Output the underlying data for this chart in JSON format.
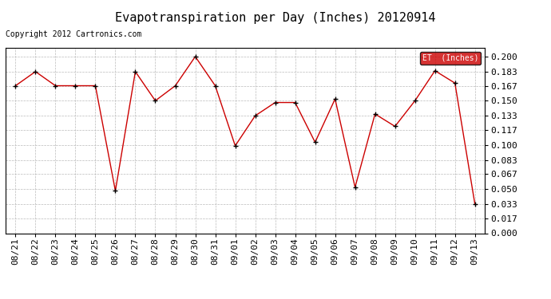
{
  "title": "Evapotranspiration per Day (Inches) 20120914",
  "copyright": "Copyright 2012 Cartronics.com",
  "legend_label": "ET  (Inches)",
  "dates": [
    "08/21",
    "08/22",
    "08/23",
    "08/24",
    "08/25",
    "08/26",
    "08/27",
    "08/28",
    "08/29",
    "08/30",
    "08/31",
    "09/01",
    "09/02",
    "09/03",
    "09/04",
    "09/05",
    "09/06",
    "09/07",
    "09/08",
    "09/09",
    "09/10",
    "09/11",
    "09/12",
    "09/13"
  ],
  "values": [
    0.167,
    0.183,
    0.167,
    0.167,
    0.167,
    0.048,
    0.183,
    0.15,
    0.167,
    0.2,
    0.167,
    0.099,
    0.133,
    0.148,
    0.148,
    0.103,
    0.152,
    0.052,
    0.135,
    0.121,
    0.15,
    0.184,
    0.17,
    0.033
  ],
  "line_color": "#cc0000",
  "marker_color": "#000000",
  "background_color": "#ffffff",
  "grid_color": "#bbbbbb",
  "ylim": [
    0.0,
    0.2099
  ],
  "yticks": [
    0.0,
    0.017,
    0.033,
    0.05,
    0.067,
    0.083,
    0.1,
    0.117,
    0.133,
    0.15,
    0.167,
    0.183,
    0.2
  ],
  "title_fontsize": 11,
  "copyright_fontsize": 7,
  "tick_fontsize": 8,
  "legend_bg": "#cc0000",
  "legend_fg": "#ffffff"
}
